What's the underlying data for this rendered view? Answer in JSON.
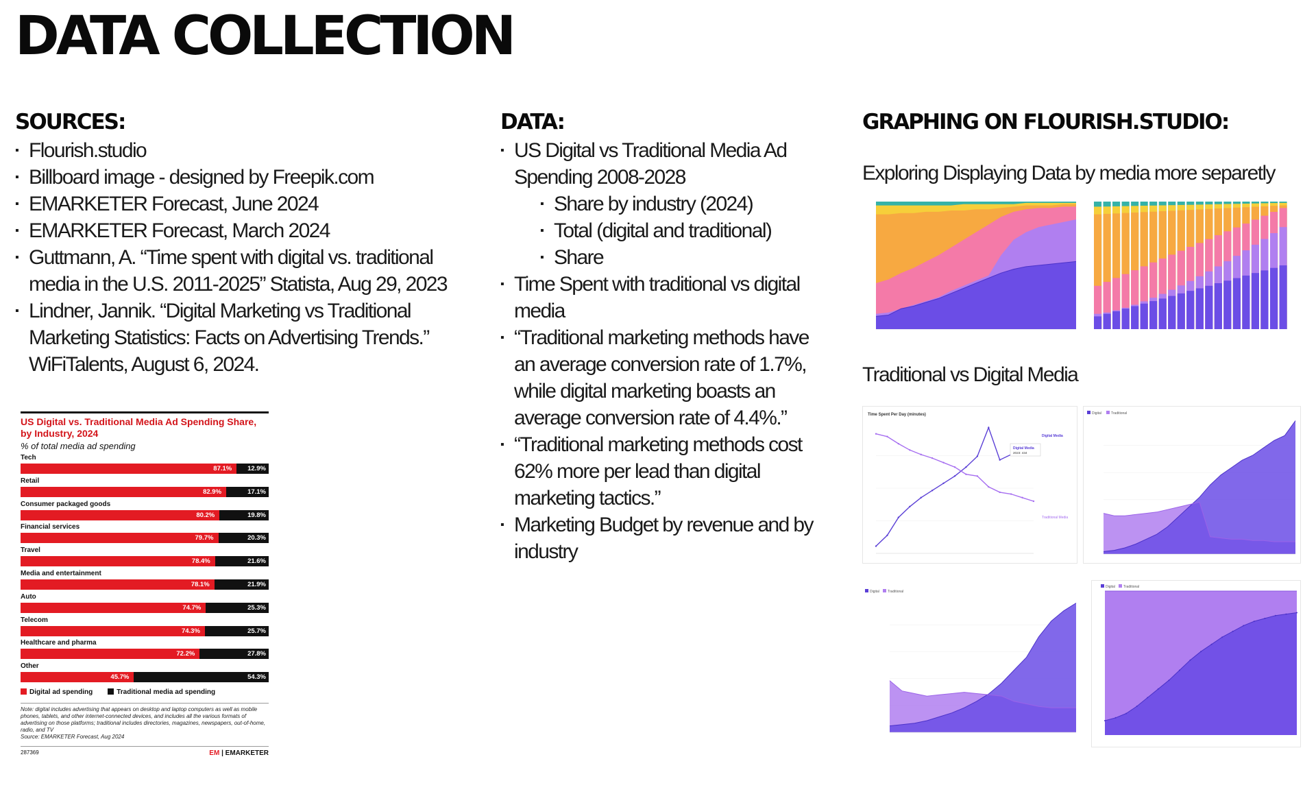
{
  "title": "DATA COLLECTION",
  "sources": {
    "heading": "SOURCES:",
    "items": [
      "Flourish.studio",
      "Billboard image - designed by Freepik.com",
      "EMARKETER Forecast, June 2024",
      "EMARKETER Forecast, March 2024",
      "Guttmann, A. “Time spent with digital vs. traditional media in the U.S. 2011-2025” Statista, Aug 29, 2023",
      "Lindner, Jannik. “Digital Marketing vs Traditional Marketing Statistics: Facts on Advertising Trends.” WiFiTalents, August 6, 2024."
    ]
  },
  "data": {
    "heading": "DATA:",
    "items": [
      {
        "text": "US Digital vs Traditional Media Ad Spending 2008-2028",
        "sub": false
      },
      {
        "text": "Share by industry (2024)",
        "sub": true
      },
      {
        "text": "Total (digital and traditional)",
        "sub": true
      },
      {
        "text": "Share",
        "sub": true
      },
      {
        "text": "Time Spent with traditional vs digital media",
        "sub": false
      },
      {
        "text": "“Traditional marketing methods have an average conversion rate of 1.7%, while digital marketing boasts an average conversion rate of 4.4%.”",
        "sub": false
      },
      {
        "text": "“Traditional marketing methods cost 62% more per lead than digital marketing tactics.”",
        "sub": false
      },
      {
        "text": "Marketing Budget by revenue and by industry",
        "sub": false
      }
    ]
  },
  "graphing": {
    "heading": "GRAPHING ON FLOURISH.STUDIO:",
    "subheading1": "Exploring Displaying Data by media more separetly",
    "subheading2": "Traditional vs Digital Media",
    "colors": {
      "purple": "#6b4de6",
      "lavender": "#b07ff0",
      "pink": "#f47aa8",
      "orange": "#f7a941",
      "yellow": "#f6cf3a",
      "teal": "#35b2a8"
    },
    "timespent": {
      "title": "Time Spent Per Day (minutes)",
      "digital_label": "Digital Media",
      "trad_label": "Traditional Media",
      "tooltip_title": "Digital Media",
      "tooltip_value": "2023: 434"
    },
    "legend_digital": "Digital",
    "legend_traditional": "Traditional"
  },
  "emarketer": {
    "title": "US Digital vs. Traditional Media Ad Spending Share, by Industry, 2024",
    "unit": "% of total media ad spending",
    "legend_digital": "Digital ad spending",
    "legend_traditional": "Traditional media ad spending",
    "note": "Note: digital includes advertising that appears on desktop and laptop computers as well as mobile phones, tablets, and other internet-connected devices, and includes all the various formats of advertising on those platforms; traditional includes directories, magazines, newspapers, out-of-home, radio, and TV",
    "source": "Source: EMARKETER Forecast, Aug 2024",
    "id": "287369",
    "logo_mark": "EM",
    "logo_text": "EMARKETER"
  },
  "chart_data": {
    "type": "bar",
    "title": "US Digital vs. Traditional Media Ad Spending Share, by Industry, 2024",
    "subtitle": "% of total media ad spending",
    "categories": [
      "Tech",
      "Retail",
      "Consumer packaged goods",
      "Financial services",
      "Travel",
      "Media and entertainment",
      "Auto",
      "Telecom",
      "Healthcare and pharma",
      "Other"
    ],
    "series": [
      {
        "name": "Digital ad spending",
        "values": [
          87.1,
          82.9,
          80.2,
          79.7,
          78.4,
          78.1,
          74.7,
          74.3,
          72.2,
          45.7
        ],
        "color": "#e31b23"
      },
      {
        "name": "Traditional media ad spending",
        "values": [
          12.9,
          17.1,
          19.8,
          20.3,
          21.6,
          21.9,
          25.3,
          25.7,
          27.8,
          54.3
        ],
        "color": "#111111"
      }
    ],
    "stacked": true,
    "orientation": "horizontal",
    "legend": "bottom"
  }
}
